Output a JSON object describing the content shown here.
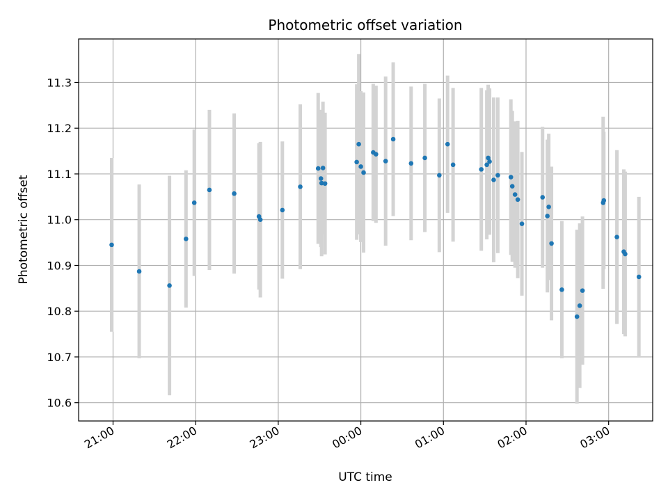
{
  "chart_data": {
    "type": "scatter",
    "title": "Photometric offset variation",
    "xlabel": "UTC time",
    "ylabel": "Photometric offset",
    "x_unit": "minutes relative to 00:00 UTC",
    "xlim": [
      -205,
      212
    ],
    "ylim": [
      10.56,
      11.395
    ],
    "x_ticks": [
      {
        "value": -180,
        "label": "21:00"
      },
      {
        "value": -120,
        "label": "22:00"
      },
      {
        "value": -60,
        "label": "23:00"
      },
      {
        "value": 0,
        "label": "00:00"
      },
      {
        "value": 60,
        "label": "01:00"
      },
      {
        "value": 120,
        "label": "02:00"
      },
      {
        "value": 180,
        "label": "03:00"
      }
    ],
    "y_ticks": [
      {
        "value": 10.6,
        "label": "10.6"
      },
      {
        "value": 10.7,
        "label": "10.7"
      },
      {
        "value": 10.8,
        "label": "10.8"
      },
      {
        "value": 10.9,
        "label": "10.9"
      },
      {
        "value": 11.0,
        "label": "11.0"
      },
      {
        "value": 11.1,
        "label": "11.1"
      },
      {
        "value": 11.2,
        "label": "11.2"
      },
      {
        "value": 11.3,
        "label": "11.3"
      }
    ],
    "grid": true,
    "colors": {
      "point": "#1f77b4",
      "errorbar": "#d3d3d3",
      "grid": "#b0b0b0"
    },
    "points": [
      {
        "x": -181,
        "y": 10.945,
        "err": 0.19
      },
      {
        "x": -161,
        "y": 10.887,
        "err": 0.19
      },
      {
        "x": -139,
        "y": 10.856,
        "err": 0.24
      },
      {
        "x": -127,
        "y": 10.958,
        "err": 0.15
      },
      {
        "x": -121,
        "y": 11.037,
        "err": 0.16
      },
      {
        "x": -110,
        "y": 11.065,
        "err": 0.175
      },
      {
        "x": -92,
        "y": 11.057,
        "err": 0.175
      },
      {
        "x": -74,
        "y": 11.007,
        "err": 0.16
      },
      {
        "x": -73,
        "y": 11.0,
        "err": 0.17
      },
      {
        "x": -57,
        "y": 11.021,
        "err": 0.15
      },
      {
        "x": -44,
        "y": 11.072,
        "err": 0.18
      },
      {
        "x": -31,
        "y": 11.112,
        "err": 0.165
      },
      {
        "x": -29,
        "y": 11.09,
        "err": 0.15
      },
      {
        "x": -28.5,
        "y": 11.08,
        "err": 0.16
      },
      {
        "x": -27.5,
        "y": 11.113,
        "err": 0.145
      },
      {
        "x": -26,
        "y": 11.079,
        "err": 0.155
      },
      {
        "x": -3,
        "y": 11.126,
        "err": 0.17
      },
      {
        "x": -1.5,
        "y": 11.165,
        "err": 0.197
      },
      {
        "x": 0,
        "y": 11.116,
        "err": 0.165
      },
      {
        "x": 2,
        "y": 11.103,
        "err": 0.175
      },
      {
        "x": 9,
        "y": 11.147,
        "err": 0.15
      },
      {
        "x": 11,
        "y": 11.143,
        "err": 0.15
      },
      {
        "x": 18,
        "y": 11.128,
        "err": 0.185
      },
      {
        "x": 23.5,
        "y": 11.176,
        "err": 0.168
      },
      {
        "x": 36.5,
        "y": 11.123,
        "err": 0.168
      },
      {
        "x": 46.5,
        "y": 11.135,
        "err": 0.162
      },
      {
        "x": 57,
        "y": 11.097,
        "err": 0.168
      },
      {
        "x": 63,
        "y": 11.165,
        "err": 0.15
      },
      {
        "x": 67,
        "y": 11.12,
        "err": 0.168
      },
      {
        "x": 87.5,
        "y": 11.11,
        "err": 0.178
      },
      {
        "x": 91.5,
        "y": 11.12,
        "err": 0.163
      },
      {
        "x": 92.5,
        "y": 11.135,
        "err": 0.16
      },
      {
        "x": 93.5,
        "y": 11.127,
        "err": 0.16
      },
      {
        "x": 96.5,
        "y": 11.087,
        "err": 0.18
      },
      {
        "x": 99.5,
        "y": 11.097,
        "err": 0.17
      },
      {
        "x": 109,
        "y": 11.093,
        "err": 0.17
      },
      {
        "x": 110,
        "y": 11.073,
        "err": 0.165
      },
      {
        "x": 112,
        "y": 11.055,
        "err": 0.16
      },
      {
        "x": 114,
        "y": 11.044,
        "err": 0.172
      },
      {
        "x": 117,
        "y": 10.991,
        "err": 0.157
      },
      {
        "x": 132,
        "y": 11.049,
        "err": 0.154
      },
      {
        "x": 135.5,
        "y": 11.008,
        "err": 0.167
      },
      {
        "x": 136.5,
        "y": 11.028,
        "err": 0.16
      },
      {
        "x": 138.5,
        "y": 10.948,
        "err": 0.168
      },
      {
        "x": 146,
        "y": 10.847,
        "err": 0.15
      },
      {
        "x": 157,
        "y": 10.788,
        "err": 0.19
      },
      {
        "x": 159,
        "y": 10.812,
        "err": 0.18
      },
      {
        "x": 161,
        "y": 10.845,
        "err": 0.162
      },
      {
        "x": 176,
        "y": 11.037,
        "err": 0.188
      },
      {
        "x": 176.5,
        "y": 11.042,
        "err": 0.15
      },
      {
        "x": 186,
        "y": 10.962,
        "err": 0.19
      },
      {
        "x": 191,
        "y": 10.93,
        "err": 0.18
      },
      {
        "x": 192,
        "y": 10.925,
        "err": 0.18
      },
      {
        "x": 202,
        "y": 10.875,
        "err": 0.175
      }
    ]
  }
}
